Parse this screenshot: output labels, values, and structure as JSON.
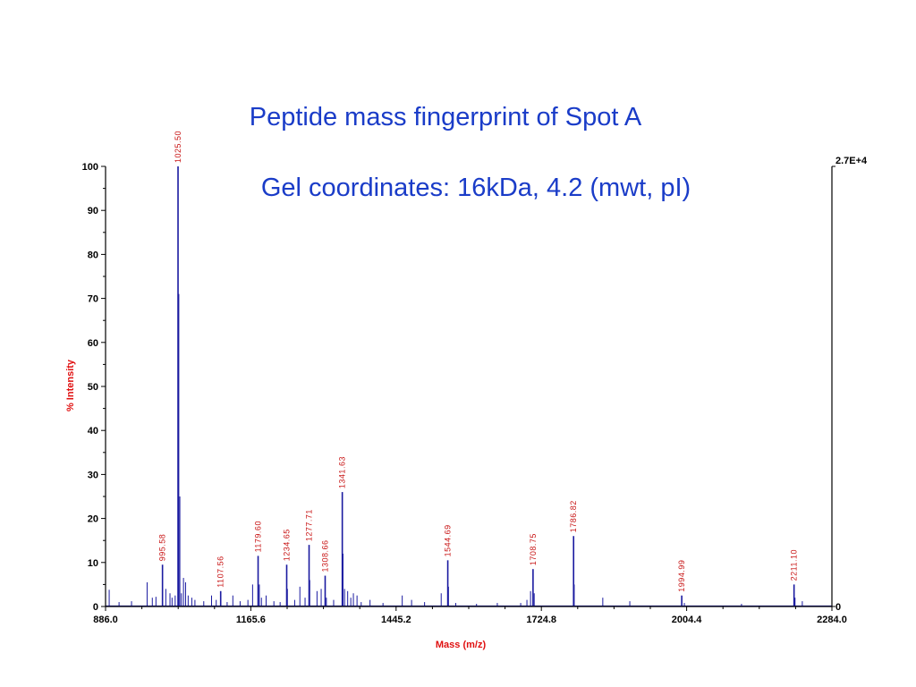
{
  "title": "Peptide mass fingerprint of Spot A",
  "subtitle": "Gel coordinates: 16kDa, 4.2 (mwt, pI)",
  "colors": {
    "title": "#1a3cc8",
    "spectrum": "#1a1aa0",
    "peak_label": "#c81414",
    "axis_label": "#e01010",
    "axis": "#000000"
  },
  "chart_data": {
    "type": "line",
    "xlabel": "Mass (m/z)",
    "ylabel": "% Intensity",
    "xlim": [
      886.0,
      2284.0
    ],
    "ylim": [
      0,
      100
    ],
    "x_tick_labels": [
      "886.0",
      "1165.6",
      "1445.2",
      "1724.8",
      "2004.4",
      "2284.0"
    ],
    "x_tick_values": [
      886.0,
      1165.6,
      1445.2,
      1724.8,
      2004.4,
      2284.0
    ],
    "y_tick_values": [
      0,
      10,
      20,
      30,
      40,
      50,
      60,
      70,
      80,
      90,
      100
    ],
    "y_tick_labels": [
      "0",
      "10",
      "20",
      "30",
      "40",
      "50",
      "60",
      "70",
      "80",
      "90",
      "100"
    ],
    "right_axis_labels": {
      "top": "2.7E+4",
      "bottom": "0"
    },
    "labeled_peaks": [
      {
        "x": 995.58,
        "y": 9.5,
        "label": "995.58"
      },
      {
        "x": 1025.5,
        "y": 100,
        "label": "1025.50"
      },
      {
        "x": 1107.56,
        "y": 3.5,
        "label": "1107.56"
      },
      {
        "x": 1179.6,
        "y": 11.5,
        "label": "1179.60"
      },
      {
        "x": 1234.65,
        "y": 9.5,
        "label": "1234.65"
      },
      {
        "x": 1277.71,
        "y": 14.0,
        "label": "1277.71"
      },
      {
        "x": 1308.66,
        "y": 7.0,
        "label": "1308.66"
      },
      {
        "x": 1341.63,
        "y": 26.0,
        "label": "1341.63"
      },
      {
        "x": 1544.69,
        "y": 10.5,
        "label": "1544.69"
      },
      {
        "x": 1708.75,
        "y": 8.5,
        "label": "1708.75"
      },
      {
        "x": 1786.82,
        "y": 16.0,
        "label": "1786.82"
      },
      {
        "x": 1994.99,
        "y": 2.5,
        "label": "1994.99"
      },
      {
        "x": 2211.1,
        "y": 5.0,
        "label": "2211.10"
      }
    ],
    "minor_peaks": [
      {
        "x": 893,
        "y": 3.8
      },
      {
        "x": 912,
        "y": 1.0
      },
      {
        "x": 936,
        "y": 1.2
      },
      {
        "x": 966,
        "y": 5.5
      },
      {
        "x": 976,
        "y": 2.0
      },
      {
        "x": 983,
        "y": 2.2
      },
      {
        "x": 1002,
        "y": 4.0
      },
      {
        "x": 1010,
        "y": 3.0
      },
      {
        "x": 1014,
        "y": 2.0
      },
      {
        "x": 1020,
        "y": 2.5
      },
      {
        "x": 1027,
        "y": 71.0
      },
      {
        "x": 1029,
        "y": 25.0
      },
      {
        "x": 1032,
        "y": 3.0
      },
      {
        "x": 1036,
        "y": 6.5
      },
      {
        "x": 1040,
        "y": 5.5
      },
      {
        "x": 1045,
        "y": 2.5
      },
      {
        "x": 1052,
        "y": 2.0
      },
      {
        "x": 1058,
        "y": 1.5
      },
      {
        "x": 1075,
        "y": 1.2
      },
      {
        "x": 1090,
        "y": 2.5
      },
      {
        "x": 1099,
        "y": 1.5
      },
      {
        "x": 1120,
        "y": 1.0
      },
      {
        "x": 1131,
        "y": 2.5
      },
      {
        "x": 1145,
        "y": 1.2
      },
      {
        "x": 1160,
        "y": 1.5
      },
      {
        "x": 1169,
        "y": 5.0
      },
      {
        "x": 1182,
        "y": 5.0
      },
      {
        "x": 1186,
        "y": 2.0
      },
      {
        "x": 1195,
        "y": 2.5
      },
      {
        "x": 1210,
        "y": 1.2
      },
      {
        "x": 1222,
        "y": 1.0
      },
      {
        "x": 1236,
        "y": 4.0
      },
      {
        "x": 1250,
        "y": 1.5
      },
      {
        "x": 1260,
        "y": 4.5
      },
      {
        "x": 1270,
        "y": 2.0
      },
      {
        "x": 1279,
        "y": 6.0
      },
      {
        "x": 1293,
        "y": 3.5
      },
      {
        "x": 1301,
        "y": 4.0
      },
      {
        "x": 1311,
        "y": 2.0
      },
      {
        "x": 1325,
        "y": 1.5
      },
      {
        "x": 1343,
        "y": 12.0
      },
      {
        "x": 1346,
        "y": 4.0
      },
      {
        "x": 1352,
        "y": 3.5
      },
      {
        "x": 1358,
        "y": 2.0
      },
      {
        "x": 1363,
        "y": 3.0
      },
      {
        "x": 1370,
        "y": 2.5
      },
      {
        "x": 1378,
        "y": 1.0
      },
      {
        "x": 1395,
        "y": 1.5
      },
      {
        "x": 1420,
        "y": 0.8
      },
      {
        "x": 1457,
        "y": 2.5
      },
      {
        "x": 1475,
        "y": 1.5
      },
      {
        "x": 1500,
        "y": 1.0
      },
      {
        "x": 1532,
        "y": 3.0
      },
      {
        "x": 1546,
        "y": 4.5
      },
      {
        "x": 1560,
        "y": 0.8
      },
      {
        "x": 1600,
        "y": 0.6
      },
      {
        "x": 1640,
        "y": 0.8
      },
      {
        "x": 1685,
        "y": 0.8
      },
      {
        "x": 1697,
        "y": 1.5
      },
      {
        "x": 1704,
        "y": 3.5
      },
      {
        "x": 1711,
        "y": 3.0
      },
      {
        "x": 1788,
        "y": 5.0
      },
      {
        "x": 1843,
        "y": 2.0
      },
      {
        "x": 1895,
        "y": 1.2
      },
      {
        "x": 2000,
        "y": 0.8
      },
      {
        "x": 2110,
        "y": 0.6
      },
      {
        "x": 2213,
        "y": 2.0
      },
      {
        "x": 2227,
        "y": 1.2
      }
    ]
  }
}
